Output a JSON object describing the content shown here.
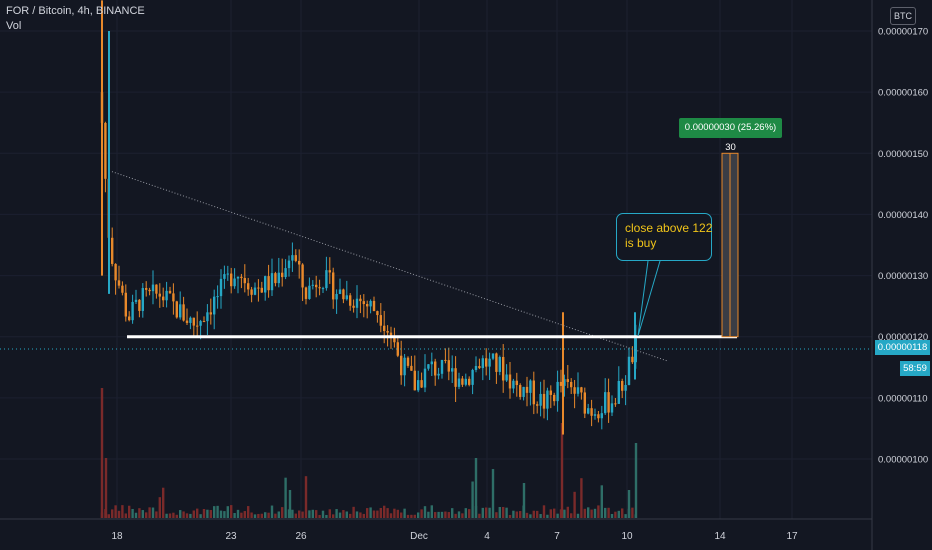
{
  "legend": {
    "symbol": "FOR / Bitcoin, 4h, BINANCE",
    "volume_label": "Vol"
  },
  "axis": {
    "currency": "BTC",
    "current_price": "0.00000118",
    "countdown": "58:59"
  },
  "colors": {
    "background": "#131722",
    "up_candle": "#26a8c6",
    "down_candle": "#e8892b",
    "up_volume": "#2e6e67",
    "down_volume": "#7a2a2a",
    "trendline": "#9598a1",
    "support": "#ffffff",
    "measure": "#1e8a45",
    "callout_border": "#26a8c6",
    "callout_text": "#f0c419",
    "price_line": "#26a8c6"
  },
  "annotations": {
    "measure_label": "0.00000030 (25.26%) 30",
    "callout_line1": "close above 122",
    "callout_line2": "is buy"
  },
  "chart_data": {
    "type": "candlestick",
    "title": "FOR / Bitcoin, 4h, BINANCE",
    "ylabel": "",
    "xlabel": "",
    "ylim": [
      9e-07,
      1.73e-06
    ],
    "y_ticks": [
      "0.00000100",
      "0.00000110",
      "0.00000120",
      "0.00000130",
      "0.00000140",
      "0.00000150",
      "0.00000160",
      "0.00000170"
    ],
    "x_ticks": [
      "18",
      "23",
      "26",
      "Dec",
      "4",
      "7",
      "10",
      "14",
      "17"
    ],
    "support_level": 1.2e-06,
    "target_level": 1.5e-06,
    "trendline": [
      {
        "time": "18",
        "price": 1.47e-06
      },
      {
        "time": "11 Dec",
        "price": 1.16e-06
      }
    ],
    "current_price": 1.18e-06,
    "measure": {
      "from": 1.2e-06,
      "to": 1.5e-06,
      "change": "0.00000030 (25.26%) 30"
    }
  }
}
